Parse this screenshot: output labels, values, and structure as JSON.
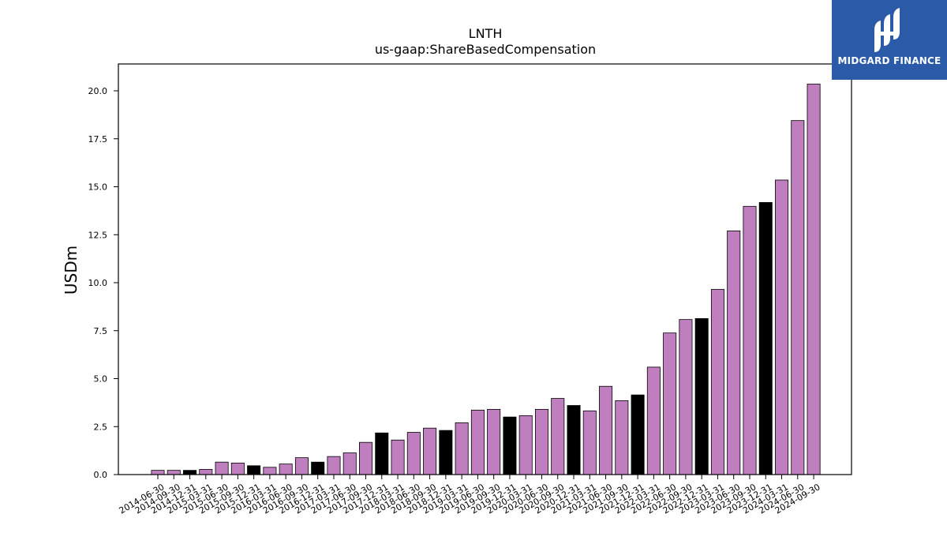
{
  "chart_data": {
    "type": "bar",
    "title": "LNTH",
    "subtitle": "us-gaap:ShareBasedCompensation",
    "ylabel": "USDm",
    "xlabel": "",
    "ylim": [
      0,
      21.4
    ],
    "yticks": [
      "0.0",
      "2.5",
      "5.0",
      "7.5",
      "10.0",
      "12.5",
      "15.0",
      "17.5",
      "20.0"
    ],
    "ytick_values": [
      0,
      2.5,
      5,
      7.5,
      10,
      12.5,
      15,
      17.5,
      20
    ],
    "grid": false,
    "colors": {
      "quarter": "#bf7fbf",
      "year_end": "#000000",
      "edge": "#000000"
    },
    "categories": [
      "2014-06-30",
      "2014-09-30",
      "2014-12-31",
      "2015-03-31",
      "2015-06-30",
      "2015-09-30",
      "2015-12-31",
      "2016-03-31",
      "2016-06-30",
      "2016-09-30",
      "2016-12-31",
      "2017-03-31",
      "2017-06-30",
      "2017-09-30",
      "2017-12-31",
      "2018-03-31",
      "2018-06-30",
      "2018-09-30",
      "2018-12-31",
      "2019-03-31",
      "2019-06-30",
      "2019-09-30",
      "2019-12-31",
      "2020-03-31",
      "2020-06-30",
      "2020-09-30",
      "2020-12-31",
      "2021-03-31",
      "2021-06-30",
      "2021-09-30",
      "2021-12-31",
      "2022-03-31",
      "2022-06-30",
      "2022-09-30",
      "2022-12-31",
      "2023-03-31",
      "2023-06-30",
      "2023-09-30",
      "2023-12-31",
      "2024-03-31",
      "2024-06-30",
      "2024-09-30"
    ],
    "values": [
      0.22,
      0.22,
      0.22,
      0.27,
      0.65,
      0.6,
      0.46,
      0.38,
      0.55,
      0.88,
      0.65,
      0.94,
      1.13,
      1.68,
      2.17,
      1.8,
      2.2,
      2.42,
      2.3,
      2.7,
      3.36,
      3.4,
      3.0,
      3.07,
      3.4,
      3.97,
      3.6,
      3.32,
      4.6,
      3.85,
      4.15,
      5.6,
      7.38,
      8.08,
      8.13,
      9.65,
      12.7,
      13.98,
      14.18,
      15.35,
      18.45,
      20.35
    ],
    "year_end": [
      false,
      false,
      true,
      false,
      false,
      false,
      true,
      false,
      false,
      false,
      true,
      false,
      false,
      false,
      true,
      false,
      false,
      false,
      true,
      false,
      false,
      false,
      true,
      false,
      false,
      false,
      true,
      false,
      false,
      false,
      true,
      false,
      false,
      false,
      true,
      false,
      false,
      false,
      true,
      false,
      false,
      false
    ]
  },
  "logo": {
    "text": "MIDGARD FINANCE",
    "icon": "midgard-logo-icon",
    "background": "#2a5aa8"
  }
}
